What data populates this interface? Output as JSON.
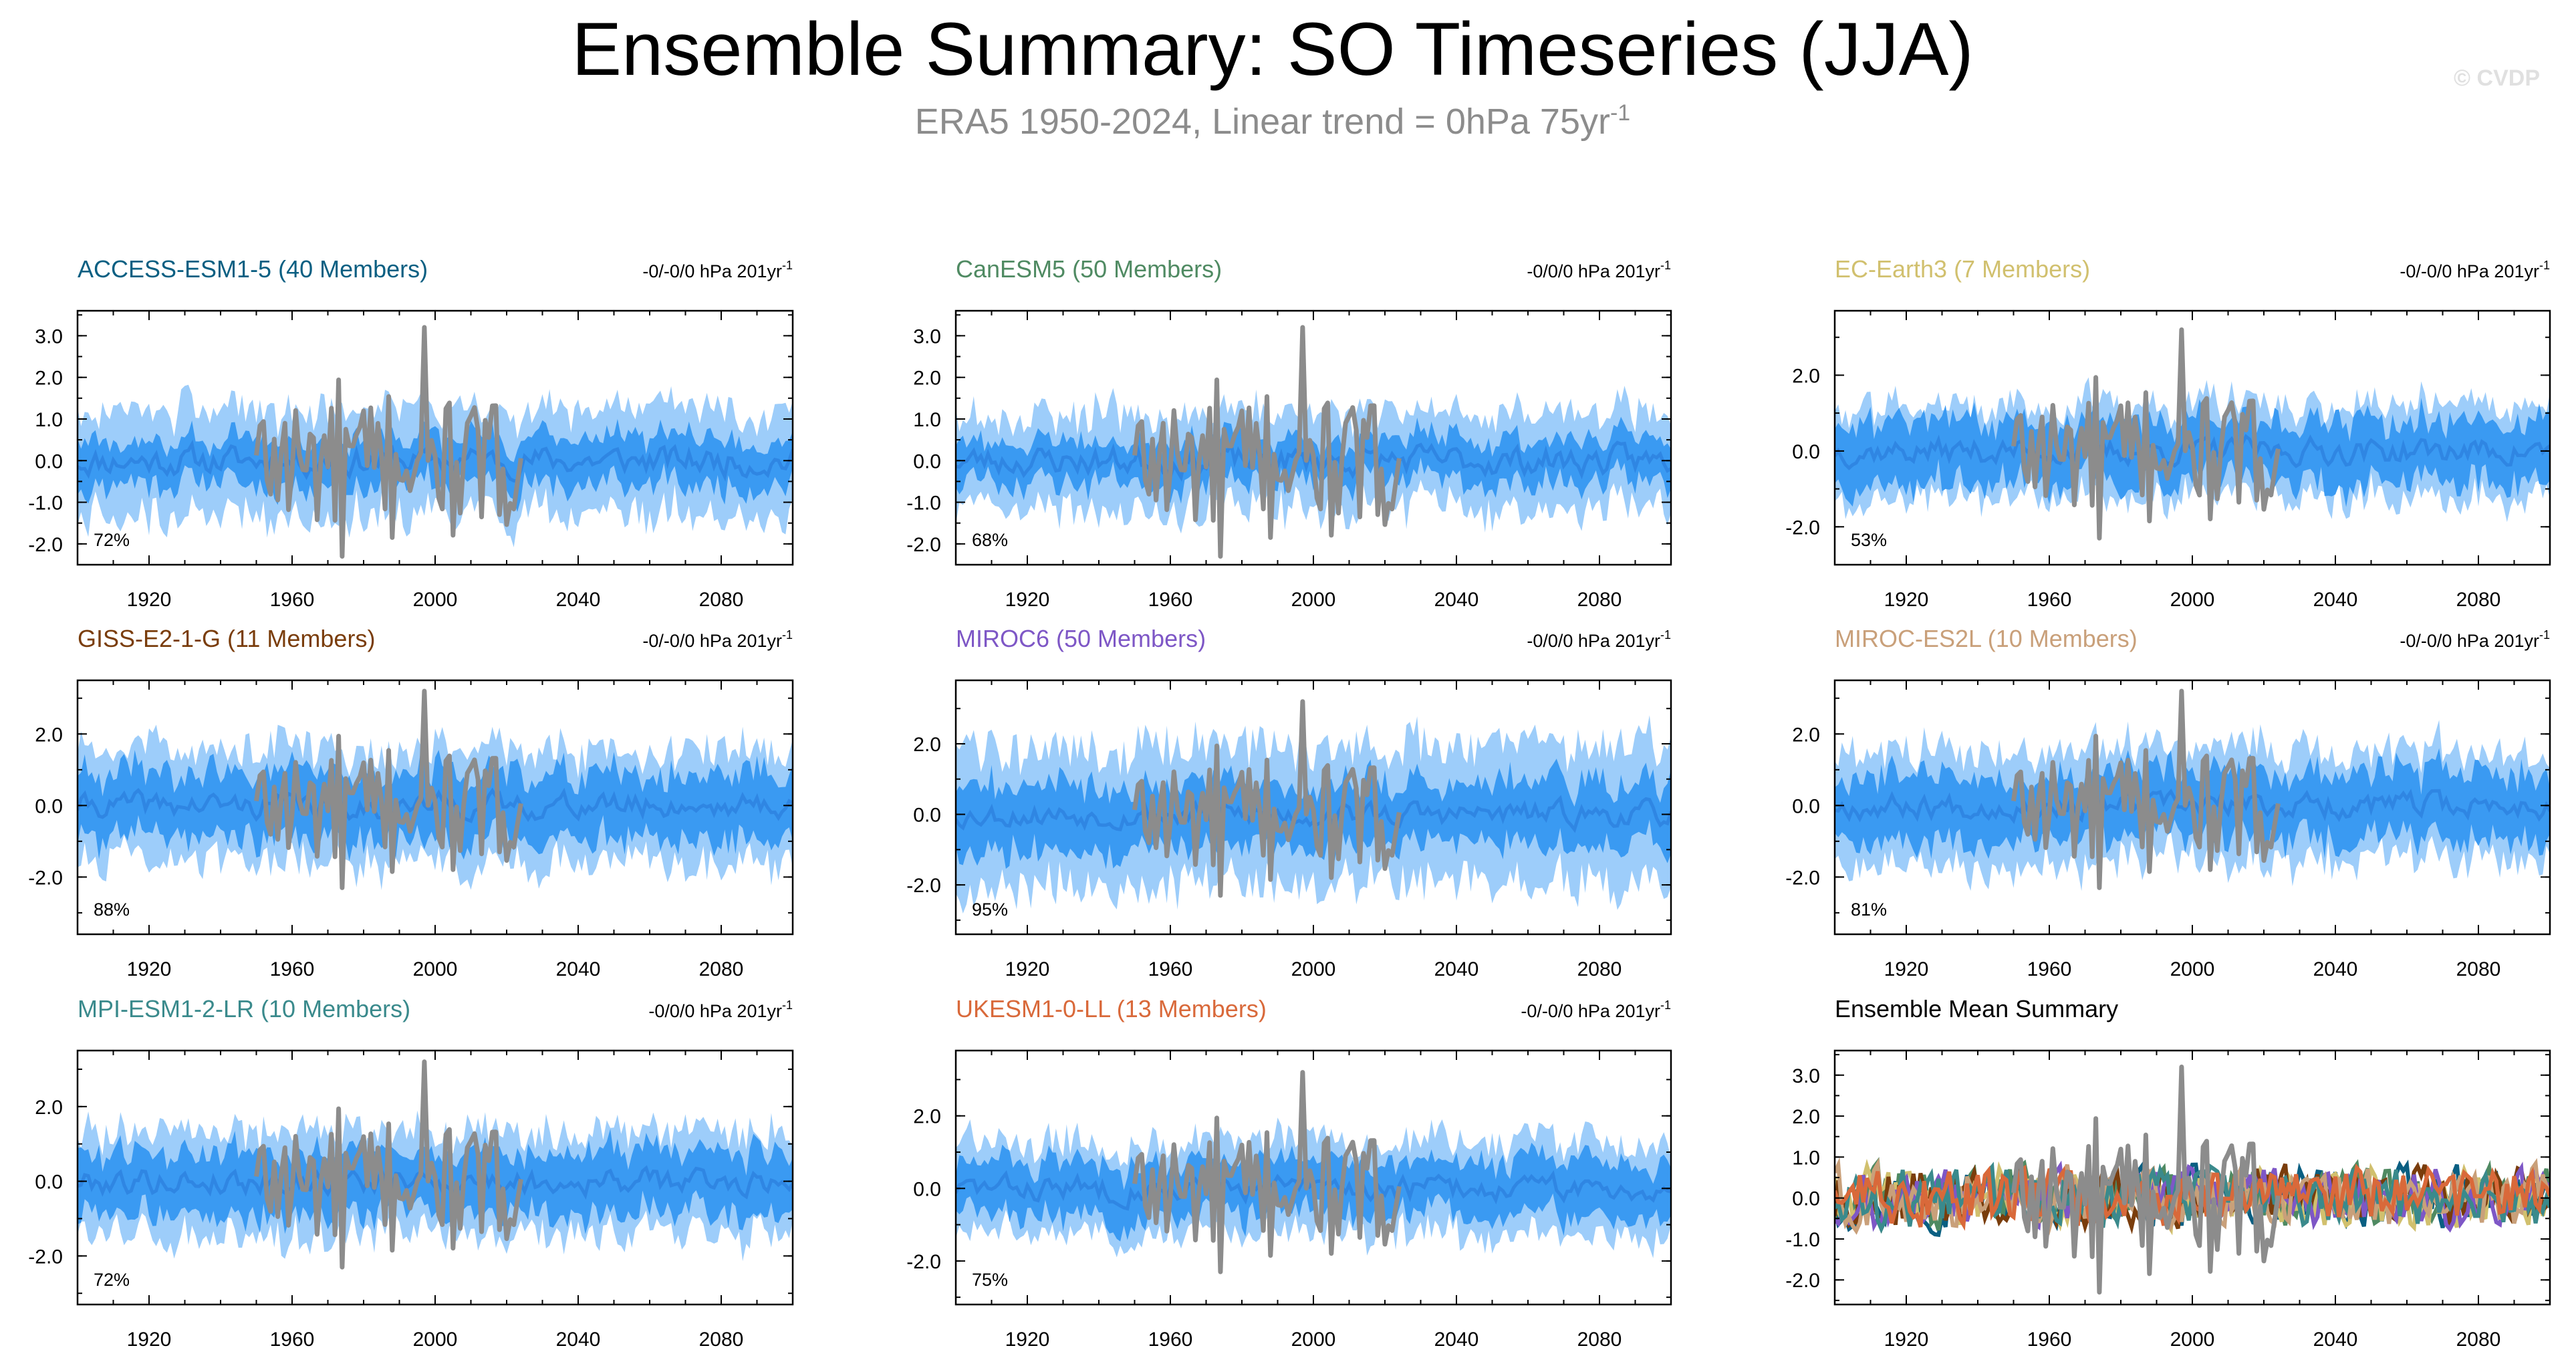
{
  "title": "Ensemble Summary: SO Timeseries (JJA)",
  "subtitle": "ERA5 1950-2024, Linear trend = 0hPa 75yr",
  "subtitle_superscript": "-1",
  "copyright": "© CVDP",
  "colors": {
    "outer_band": "#9dcdfa",
    "inner_band": "#3a9af2",
    "ensemble_mean": "#2f86e3",
    "observations": "#8c8c8c"
  },
  "chart_data": [
    {
      "type": "line",
      "title": "ACCESS-ESM1-5 (40 Members)",
      "title_color": "#0a5f82",
      "trend_text": "-0/-0/0 hPa 201yr",
      "trend_superscript": "-1",
      "percent_label": "72%",
      "x_range": [
        1900,
        2100
      ],
      "x_ticks": [
        1920,
        1960,
        2000,
        2040,
        2080
      ],
      "ylim": [
        -2.5,
        3.6
      ],
      "y_ticks": [
        3.0,
        2.0,
        1.0,
        0.0,
        -1.0,
        -2.0
      ],
      "y_tick_labels": [
        "3.0",
        "2.0",
        "1.0",
        "0.0",
        "-1.0",
        "-2.0"
      ],
      "band_outer_halfwidth": 1.35,
      "band_inner_halfwidth": 0.6,
      "obs_period": [
        1950,
        2024
      ],
      "seed": 11
    },
    {
      "type": "line",
      "title": "CanESM5 (50 Members)",
      "title_color": "#4f8a62",
      "trend_text": "-0/0/0 hPa 201yr",
      "trend_superscript": "-1",
      "percent_label": "68%",
      "x_range": [
        1900,
        2100
      ],
      "x_ticks": [
        1920,
        1960,
        2000,
        2040,
        2080
      ],
      "ylim": [
        -2.5,
        3.6
      ],
      "y_ticks": [
        3.0,
        2.0,
        1.0,
        0.0,
        -1.0,
        -2.0
      ],
      "y_tick_labels": [
        "3.0",
        "2.0",
        "1.0",
        "0.0",
        "-1.0",
        "-2.0"
      ],
      "band_outer_halfwidth": 1.25,
      "band_inner_halfwidth": 0.55,
      "obs_period": [
        1950,
        2024
      ],
      "seed": 23
    },
    {
      "type": "line",
      "title": "EC-Earth3 (7 Members)",
      "title_color": "#d1c06e",
      "trend_text": "-0/-0/0 hPa 201yr",
      "trend_superscript": "-1",
      "percent_label": "53%",
      "x_range": [
        1900,
        2100
      ],
      "x_ticks": [
        1920,
        1960,
        2000,
        2040,
        2080
      ],
      "ylim": [
        -3.0,
        3.7
      ],
      "y_ticks": [
        2.0,
        0.0,
        -2.0
      ],
      "y_tick_labels": [
        "2.0",
        "0.0",
        "-2.0"
      ],
      "band_outer_halfwidth": 1.3,
      "band_inner_halfwidth": 0.9,
      "obs_period": [
        1950,
        2024
      ],
      "seed": 37
    },
    {
      "type": "line",
      "title": "GISS-E2-1-G (11 Members)",
      "title_color": "#7a3d0c",
      "trend_text": "-0/-0/0 hPa 201yr",
      "trend_superscript": "-1",
      "percent_label": "88%",
      "x_range": [
        1900,
        2100
      ],
      "x_ticks": [
        1920,
        1960,
        2000,
        2040,
        2080
      ],
      "ylim": [
        -3.6,
        3.5
      ],
      "y_ticks": [
        2.0,
        0.0,
        -2.0
      ],
      "y_tick_labels": [
        "2.0",
        "0.0",
        "-2.0"
      ],
      "band_outer_halfwidth": 1.7,
      "band_inner_halfwidth": 1.0,
      "obs_period": [
        1950,
        2024
      ],
      "seed": 41
    },
    {
      "type": "line",
      "title": "MIROC6 (50 Members)",
      "title_color": "#7e57c6",
      "trend_text": "-0/0/0 hPa 201yr",
      "trend_superscript": "-1",
      "percent_label": "95%",
      "x_range": [
        1900,
        2100
      ],
      "x_ticks": [
        1920,
        1960,
        2000,
        2040,
        2080
      ],
      "ylim": [
        -3.4,
        3.8
      ],
      "y_ticks": [
        2.0,
        0.0,
        -2.0
      ],
      "y_tick_labels": [
        "2.0",
        "0.0",
        "-2.0"
      ],
      "band_outer_halfwidth": 2.1,
      "band_inner_halfwidth": 1.0,
      "obs_period": [
        1950,
        2024
      ],
      "seed": 53
    },
    {
      "type": "line",
      "title": "MIROC-ES2L (10 Members)",
      "title_color": "#c9a07a",
      "trend_text": "-0/-0/0 hPa 201yr",
      "trend_superscript": "-1",
      "percent_label": "81%",
      "x_range": [
        1900,
        2100
      ],
      "x_ticks": [
        1920,
        1960,
        2000,
        2040,
        2080
      ],
      "ylim": [
        -3.6,
        3.5
      ],
      "y_ticks": [
        2.0,
        0.0,
        -2.0
      ],
      "y_tick_labels": [
        "2.0",
        "0.0",
        "-2.0"
      ],
      "band_outer_halfwidth": 1.7,
      "band_inner_halfwidth": 1.0,
      "obs_period": [
        1950,
        2024
      ],
      "seed": 67
    },
    {
      "type": "line",
      "title": "MPI-ESM1-2-LR (10 Members)",
      "title_color": "#3a8a8c",
      "trend_text": "-0/0/0 hPa 201yr",
      "trend_superscript": "-1",
      "percent_label": "72%",
      "x_range": [
        1900,
        2100
      ],
      "x_ticks": [
        1920,
        1960,
        2000,
        2040,
        2080
      ],
      "ylim": [
        -3.3,
        3.5
      ],
      "y_ticks": [
        2.0,
        0.0,
        -2.0
      ],
      "y_tick_labels": [
        "2.0",
        "0.0",
        "-2.0"
      ],
      "band_outer_halfwidth": 1.5,
      "band_inner_halfwidth": 0.9,
      "obs_period": [
        1950,
        2024
      ],
      "seed": 79
    },
    {
      "type": "line",
      "title": "UKESM1-0-LL (13 Members)",
      "title_color": "#d9693a",
      "trend_text": "-0/-0/0 hPa 201yr",
      "trend_superscript": "-1",
      "percent_label": "75%",
      "x_range": [
        1900,
        2100
      ],
      "x_ticks": [
        1920,
        1960,
        2000,
        2040,
        2080
      ],
      "ylim": [
        -3.2,
        3.8
      ],
      "y_ticks": [
        2.0,
        0.0,
        -2.0
      ],
      "y_tick_labels": [
        "2.0",
        "0.0",
        "-2.0"
      ],
      "band_outer_halfwidth": 1.4,
      "band_inner_halfwidth": 0.8,
      "obs_period": [
        1950,
        2024
      ],
      "seed": 83
    },
    {
      "type": "line",
      "title": "Ensemble Mean Summary",
      "title_color": "#000000",
      "trend_text": "",
      "percent_label": "",
      "x_range": [
        1900,
        2100
      ],
      "x_ticks": [
        1920,
        1960,
        2000,
        2040,
        2080
      ],
      "ylim": [
        -2.6,
        3.6
      ],
      "y_ticks": [
        3.0,
        2.0,
        1.0,
        0.0,
        -1.0,
        -2.0
      ],
      "y_tick_labels": [
        "3.0",
        "2.0",
        "1.0",
        "0.0",
        "-1.0",
        "-2.0"
      ],
      "obs_period": [
        1950,
        2024
      ],
      "summary": true,
      "series_colors": [
        "#0a5f82",
        "#4f8a62",
        "#d1c06e",
        "#7a3d0c",
        "#7e57c6",
        "#c9a07a",
        "#3a8a8c",
        "#d9693a"
      ],
      "seed": 97
    }
  ]
}
